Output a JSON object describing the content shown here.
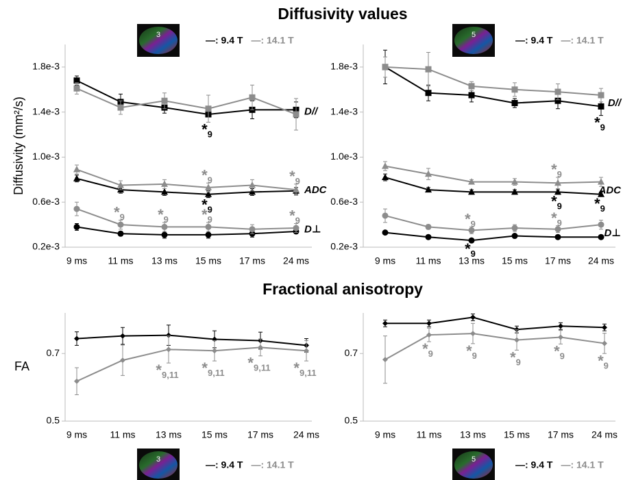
{
  "titles": [
    "Diffusivity values",
    "Fractional anisotropy"
  ],
  "legends": [
    {
      "image_label": "3",
      "entries": [
        {
          "text": "—: 9.4 T",
          "color": "#000000"
        },
        {
          "text": "—: 14.1 T",
          "color": "#8c8c8c"
        }
      ]
    },
    {
      "image_label": "5",
      "entries": [
        {
          "text": "—: 9.4 T",
          "color": "#000000"
        },
        {
          "text": "—: 14.1 T",
          "color": "#8c8c8c"
        }
      ]
    },
    {
      "image_label": "3",
      "entries": [
        {
          "text": "—: 9.4 T",
          "color": "#000000"
        },
        {
          "text": "—: 14.1 T",
          "color": "#8c8c8c"
        }
      ]
    },
    {
      "image_label": "5",
      "entries": [
        {
          "text": "—: 9.4 T",
          "color": "#000000"
        },
        {
          "text": "—: 14.1 T",
          "color": "#8c8c8c"
        }
      ]
    }
  ],
  "chart_data": [
    {
      "type": "line",
      "ylabel": "Diffusivity (mm²/s)",
      "categories": [
        "9 ms",
        "11 ms",
        "13 ms",
        "15 ms",
        "17 ms",
        "24 ms"
      ],
      "ylim": [
        0.0002,
        0.002
      ],
      "yticks": [
        {
          "value": 0.0002,
          "label": "0.2e-3"
        },
        {
          "value": 0.0006,
          "label": "0.6e-3"
        },
        {
          "value": 0.001,
          "label": "1.0e-3"
        },
        {
          "value": 0.0014,
          "label": "1.4e-3"
        },
        {
          "value": 0.0018,
          "label": "1.8e-3"
        }
      ],
      "groups": [
        {
          "label": "D//",
          "marker": "square",
          "series": [
            {
              "name": "9.4 T",
              "color": "#000000",
              "values": [
                0.00168,
                0.00149,
                0.00144,
                0.00138,
                0.00142,
                0.00142
              ],
              "errors": [
                4e-05,
                7e-05,
                5e-05,
                7e-05,
                8e-05,
                7e-05
              ],
              "annotations": [
                {
                  "category": "15 ms",
                  "text": "*",
                  "subscript": "9",
                  "placement": "below"
                }
              ]
            },
            {
              "name": "14.1 T",
              "color": "#8c8c8c",
              "values": [
                0.00161,
                0.00144,
                0.0015,
                0.00143,
                0.00153,
                0.00138
              ],
              "errors": [
                5e-05,
                6e-05,
                7e-05,
                0.00012,
                0.00011,
                0.00014
              ]
            }
          ]
        },
        {
          "label": "ADC",
          "marker": "triangle",
          "series": [
            {
              "name": "9.4 T",
              "color": "#000000",
              "values": [
                0.00081,
                0.00071,
                0.00069,
                0.00067,
                0.00069,
                0.0007
              ],
              "errors": [
                3e-05,
                3e-05,
                3e-05,
                3e-05,
                3e-05,
                3e-05
              ],
              "annotations": [
                {
                  "category": "15 ms",
                  "text": "*",
                  "subscript": "9",
                  "placement": "below"
                }
              ]
            },
            {
              "name": "14.1 T",
              "color": "#8c8c8c",
              "values": [
                0.00089,
                0.00075,
                0.00076,
                0.00073,
                0.00075,
                0.00071
              ],
              "errors": [
                4e-05,
                4e-05,
                4e-05,
                4e-05,
                5e-05,
                5e-05
              ],
              "annotations": [
                {
                  "category": "15 ms",
                  "text": "*",
                  "subscript": "9",
                  "placement": "above"
                },
                {
                  "category": "24 ms",
                  "text": "*",
                  "subscript": "9",
                  "placement": "above"
                }
              ]
            }
          ]
        },
        {
          "label": "D⊥",
          "marker": "circle",
          "series": [
            {
              "name": "9.4 T",
              "color": "#000000",
              "values": [
                0.00038,
                0.00032,
                0.00031,
                0.00031,
                0.00032,
                0.00034
              ],
              "errors": [
                3e-05,
                2e-05,
                3e-05,
                3e-05,
                3e-05,
                2e-05
              ]
            },
            {
              "name": "14.1 T",
              "color": "#8c8c8c",
              "values": [
                0.00054,
                0.0004,
                0.00038,
                0.00038,
                0.00036,
                0.00037
              ],
              "errors": [
                6e-05,
                4e-05,
                4e-05,
                4e-05,
                4e-05,
                4e-05
              ],
              "annotations": [
                {
                  "category": "11 ms",
                  "text": "*",
                  "subscript": "9",
                  "placement": "above"
                },
                {
                  "category": "13 ms",
                  "text": "*",
                  "subscript": "9",
                  "placement": "above"
                },
                {
                  "category": "15 ms",
                  "text": "*",
                  "subscript": "9",
                  "placement": "above"
                },
                {
                  "category": "24 ms",
                  "text": "*",
                  "subscript": "9",
                  "placement": "above"
                }
              ]
            }
          ]
        }
      ]
    },
    {
      "type": "line",
      "categories": [
        "9 ms",
        "11 ms",
        "13 ms",
        "15 ms",
        "17 ms",
        "24 ms"
      ],
      "ylim": [
        0.0002,
        0.002
      ],
      "yticks": [
        {
          "value": 0.0002,
          "label": "0.2e-3"
        },
        {
          "value": 0.0006,
          "label": "0.6e-3"
        },
        {
          "value": 0.001,
          "label": "1.0e-3"
        },
        {
          "value": 0.0014,
          "label": "1.4e-3"
        },
        {
          "value": 0.0018,
          "label": "1.8e-3"
        }
      ],
      "groups": [
        {
          "label": "D//",
          "marker": "square",
          "series": [
            {
              "name": "9.4 T",
              "color": "#000000",
              "values": [
                0.0018,
                0.00157,
                0.00155,
                0.00148,
                0.0015,
                0.00145
              ],
              "errors": [
                0.00015,
                7e-05,
                6e-05,
                4e-05,
                7e-05,
                8e-05
              ],
              "annotations": [
                {
                  "category": "24 ms",
                  "text": "*",
                  "subscript": "9",
                  "placement": "below"
                }
              ]
            },
            {
              "name": "14.1 T",
              "color": "#8c8c8c",
              "values": [
                0.0018,
                0.00178,
                0.00163,
                0.0016,
                0.00158,
                0.00155
              ],
              "errors": [
                9e-05,
                0.00015,
                4e-05,
                6e-05,
                7e-05,
                6e-05
              ]
            }
          ]
        },
        {
          "label": "ADC",
          "marker": "triangle",
          "series": [
            {
              "name": "9.4 T",
              "color": "#000000",
              "values": [
                0.00082,
                0.00071,
                0.00069,
                0.00069,
                0.00069,
                0.00067
              ],
              "errors": [
                3e-05,
                2e-05,
                2e-05,
                2e-05,
                2e-05,
                2e-05
              ],
              "annotations": [
                {
                  "category": "17 ms",
                  "text": "*",
                  "subscript": "9",
                  "placement": "below"
                },
                {
                  "category": "24 ms",
                  "text": "*",
                  "subscript": "9",
                  "placement": "below"
                }
              ]
            },
            {
              "name": "14.1 T",
              "color": "#8c8c8c",
              "values": [
                0.00092,
                0.00085,
                0.00078,
                0.00078,
                0.00077,
                0.00078
              ],
              "errors": [
                4e-05,
                5e-05,
                2e-05,
                3e-05,
                5e-05,
                4e-05
              ],
              "annotations": [
                {
                  "category": "17 ms",
                  "text": "*",
                  "subscript": "9",
                  "placement": "above"
                }
              ]
            }
          ]
        },
        {
          "label": "D⊥",
          "marker": "circle",
          "series": [
            {
              "name": "9.4 T",
              "color": "#000000",
              "values": [
                0.00033,
                0.00029,
                0.00026,
                0.0003,
                0.00029,
                0.00029
              ],
              "errors": [
                1e-05,
                1e-05,
                1e-05,
                1e-05,
                1e-05,
                1e-05
              ],
              "annotations": [
                {
                  "category": "13 ms",
                  "text": "*",
                  "subscript": "9",
                  "placement": "below"
                }
              ]
            },
            {
              "name": "14.1 T",
              "color": "#8c8c8c",
              "values": [
                0.00048,
                0.00038,
                0.00035,
                0.00037,
                0.00036,
                0.0004
              ],
              "errors": [
                6e-05,
                2e-05,
                3e-05,
                3e-05,
                3e-05,
                4e-05
              ],
              "annotations": [
                {
                  "category": "13 ms",
                  "text": "*",
                  "subscript": "9",
                  "placement": "above"
                },
                {
                  "category": "17 ms",
                  "text": "*",
                  "subscript": "9",
                  "placement": "above"
                }
              ]
            }
          ]
        }
      ]
    },
    {
      "type": "line",
      "ylabel": "FA",
      "categories": [
        "9 ms",
        "11 ms",
        "13 ms",
        "15 ms",
        "17 ms",
        "24 ms"
      ],
      "ylim": [
        0.5,
        0.82
      ],
      "yticks": [
        0.5,
        0.7
      ],
      "groups": [
        {
          "marker": "diamond",
          "series": [
            {
              "name": "9.4 T",
              "color": "#000000",
              "values": [
                0.744,
                0.752,
                0.754,
                0.742,
                0.738,
                0.724
              ],
              "errors": [
                0.02,
                0.025,
                0.03,
                0.025,
                0.025,
                0.02
              ]
            },
            {
              "name": "14.1 T",
              "color": "#8c8c8c",
              "values": [
                0.618,
                0.68,
                0.712,
                0.708,
                0.718,
                0.708
              ],
              "errors": [
                0.04,
                0.045,
                0.04,
                0.03,
                0.025,
                0.03
              ],
              "annotations": [
                {
                  "category": "13 ms",
                  "text": "*",
                  "subscript": "9,11",
                  "placement": "below"
                },
                {
                  "category": "15 ms",
                  "text": "*",
                  "subscript": "9,11",
                  "placement": "below"
                },
                {
                  "category": "17 ms",
                  "text": "*",
                  "subscript": "9,11",
                  "placement": "below"
                },
                {
                  "category": "24 ms",
                  "text": "*",
                  "subscript": "9,11",
                  "placement": "below"
                }
              ]
            }
          ]
        }
      ]
    },
    {
      "type": "line",
      "categories": [
        "9 ms",
        "11 ms",
        "13 ms",
        "15 ms",
        "17 ms",
        "24 ms"
      ],
      "ylim": [
        0.5,
        0.82
      ],
      "yticks": [
        0.5,
        0.7
      ],
      "groups": [
        {
          "marker": "diamond",
          "series": [
            {
              "name": "9.4 T",
              "color": "#000000",
              "values": [
                0.789,
                0.789,
                0.807,
                0.771,
                0.781,
                0.777
              ],
              "errors": [
                0.01,
                0.01,
                0.01,
                0.01,
                0.01,
                0.01
              ]
            },
            {
              "name": "14.1 T",
              "color": "#8c8c8c",
              "values": [
                0.682,
                0.755,
                0.759,
                0.74,
                0.748,
                0.73
              ],
              "errors": [
                0.07,
                0.02,
                0.03,
                0.03,
                0.02,
                0.03
              ],
              "annotations": [
                {
                  "category": "11 ms",
                  "text": "*",
                  "subscript": "9",
                  "placement": "below"
                },
                {
                  "category": "13 ms",
                  "text": "*",
                  "subscript": "9",
                  "placement": "below"
                },
                {
                  "category": "15 ms",
                  "text": "*",
                  "subscript": "9",
                  "placement": "below"
                },
                {
                  "category": "17 ms",
                  "text": "*",
                  "subscript": "9",
                  "placement": "below"
                },
                {
                  "category": "24 ms",
                  "text": "*",
                  "subscript": "9",
                  "placement": "below"
                }
              ]
            }
          ]
        }
      ]
    }
  ]
}
